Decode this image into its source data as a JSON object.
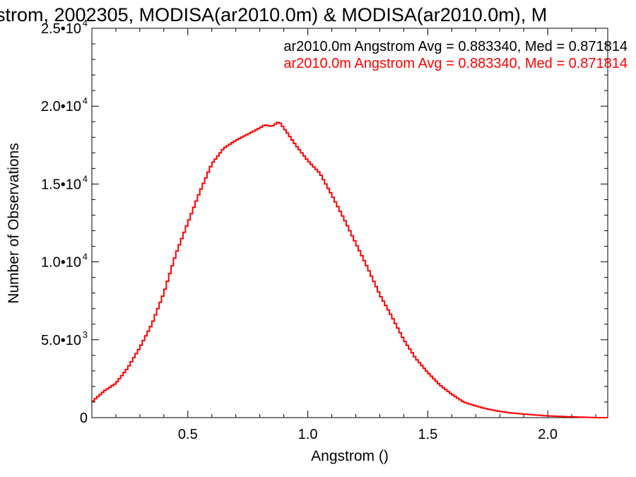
{
  "chart_data": {
    "type": "line",
    "title": "strom, 2002305, MODISA(ar2010.0m) & MODISA(ar2010.0m), M",
    "xlabel": "Angstrom ()",
    "ylabel": "Number of Observations",
    "xlim": [
      0.1,
      2.25
    ],
    "ylim": [
      0,
      25000
    ],
    "grid": false,
    "x_ticks": [
      {
        "value": 0.5,
        "label": "0.5"
      },
      {
        "value": 1.0,
        "label": "1.0"
      },
      {
        "value": 1.5,
        "label": "1.5"
      },
      {
        "value": 2.0,
        "label": "2.0"
      }
    ],
    "y_ticks": [
      {
        "value": 0,
        "label": "0",
        "exp": ""
      },
      {
        "value": 5000,
        "label": "5.0•10",
        "exp": "3"
      },
      {
        "value": 10000,
        "label": "1.0•10",
        "exp": "4"
      },
      {
        "value": 15000,
        "label": "1.5•10",
        "exp": "4"
      },
      {
        "value": 20000,
        "label": "2.0•10",
        "exp": "4"
      },
      {
        "value": 25000,
        "label": "2.5•10",
        "exp": "4"
      }
    ],
    "legend": {
      "position": "top-right",
      "entries": [
        {
          "text": "ar2010.0m Angstrom Avg = 0.883340, Med = 0.871814",
          "color": "#000000"
        },
        {
          "text": "ar2010.0m Angstrom Avg = 0.883340, Med = 0.871814",
          "color": "#ff0000"
        }
      ]
    },
    "series": [
      {
        "color": "#ff0000",
        "x": [
          0.1,
          0.15,
          0.2,
          0.25,
          0.3,
          0.35,
          0.4,
          0.45,
          0.5,
          0.55,
          0.6,
          0.65,
          0.7,
          0.75,
          0.8,
          0.82,
          0.85,
          0.88,
          0.9,
          0.95,
          1.0,
          1.05,
          1.1,
          1.15,
          1.2,
          1.25,
          1.3,
          1.35,
          1.4,
          1.45,
          1.5,
          1.55,
          1.6,
          1.65,
          1.7,
          1.75,
          1.8,
          1.85,
          1.9,
          1.95,
          2.0,
          2.05,
          2.1,
          2.15,
          2.2,
          2.25
        ],
        "y": [
          1000,
          1700,
          2200,
          3200,
          4500,
          6000,
          8000,
          10500,
          12500,
          14500,
          16300,
          17300,
          17800,
          18200,
          18600,
          18800,
          18700,
          19000,
          18600,
          17500,
          16500,
          15700,
          14300,
          12800,
          11200,
          9600,
          7900,
          6500,
          5000,
          3800,
          2900,
          2100,
          1500,
          1000,
          750,
          550,
          400,
          300,
          230,
          170,
          110,
          80,
          50,
          30,
          0,
          0
        ]
      }
    ]
  }
}
